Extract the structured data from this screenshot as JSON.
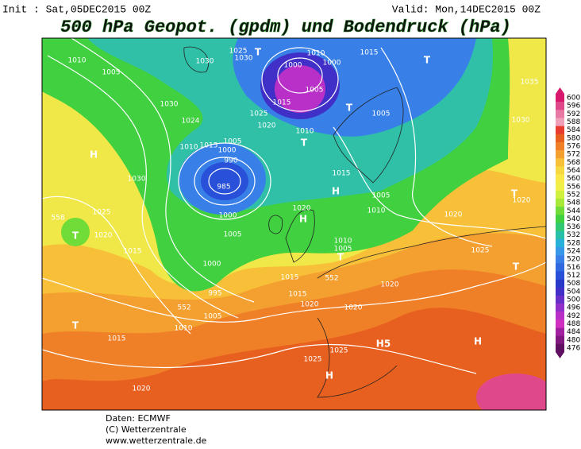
{
  "header": {
    "init": "Init : Sat,05DEC2015 00Z",
    "valid": "Valid: Mon,14DEC2015 00Z",
    "title": "500 hPa Geopot. (gpdm) und Bodendruck (hPa)"
  },
  "legend": {
    "levels": [
      {
        "label": "600",
        "color": "#d8186c"
      },
      {
        "label": "596",
        "color": "#e0488c"
      },
      {
        "label": "592",
        "color": "#e878a4"
      },
      {
        "label": "588",
        "color": "#f0a0b8"
      },
      {
        "label": "584",
        "color": "#e83c30"
      },
      {
        "label": "580",
        "color": "#e86020"
      },
      {
        "label": "576",
        "color": "#f08028"
      },
      {
        "label": "572",
        "color": "#f4a030"
      },
      {
        "label": "568",
        "color": "#f8c038"
      },
      {
        "label": "564",
        "color": "#f8d840"
      },
      {
        "label": "560",
        "color": "#f8e848"
      },
      {
        "label": "556",
        "color": "#f0f048"
      },
      {
        "label": "552",
        "color": "#d0f040"
      },
      {
        "label": "548",
        "color": "#a8e838"
      },
      {
        "label": "544",
        "color": "#70dc38"
      },
      {
        "label": "540",
        "color": "#40d040"
      },
      {
        "label": "536",
        "color": "#30c870"
      },
      {
        "label": "532",
        "color": "#28c0a8"
      },
      {
        "label": "528",
        "color": "#28b0d8"
      },
      {
        "label": "524",
        "color": "#3898e8"
      },
      {
        "label": "520",
        "color": "#3880e8"
      },
      {
        "label": "516",
        "color": "#3068e0"
      },
      {
        "label": "512",
        "color": "#2850d8"
      },
      {
        "label": "508",
        "color": "#2838c8"
      },
      {
        "label": "504",
        "color": "#4030c8"
      },
      {
        "label": "500",
        "color": "#6830c8"
      },
      {
        "label": "496",
        "color": "#9030c8"
      },
      {
        "label": "492",
        "color": "#b830c8"
      },
      {
        "label": "488",
        "color": "#d030c0"
      },
      {
        "label": "484",
        "color": "#a020a0"
      },
      {
        "label": "480",
        "color": "#801880"
      },
      {
        "label": "476",
        "color": "#601060"
      }
    ]
  },
  "map": {
    "labels": [
      "1010",
      "1005",
      "1030",
      "1025",
      "1030",
      "T",
      "1000",
      "1010",
      "1000",
      "1015",
      "T",
      "1035",
      "1030",
      "1005",
      "1015",
      "T",
      "1025",
      "1020",
      "1024",
      "1005",
      "1030",
      "1010",
      "T",
      "1010",
      "1015",
      "1000",
      "1005",
      "990",
      "985",
      "H",
      "1030",
      "1015",
      "H",
      "1005",
      "1010",
      "1020",
      "T",
      "1020",
      "558",
      "T",
      "1025",
      "1020",
      "1015",
      "1000",
      "1005",
      "1020",
      "H",
      "1010",
      "1005",
      "T",
      "1025",
      "1000",
      "1015",
      "552",
      "1020",
      "T",
      "995",
      "1005",
      "552",
      "1010",
      "1015",
      "1020",
      "T",
      "1015",
      "1020",
      "1025",
      "H5",
      "H",
      "1025",
      "H",
      "1020"
    ]
  },
  "footer": {
    "source": "Daten: ECMWF",
    "copyright": "(C) Wetterzentrale",
    "url": "www.wetterzentrale.de"
  }
}
